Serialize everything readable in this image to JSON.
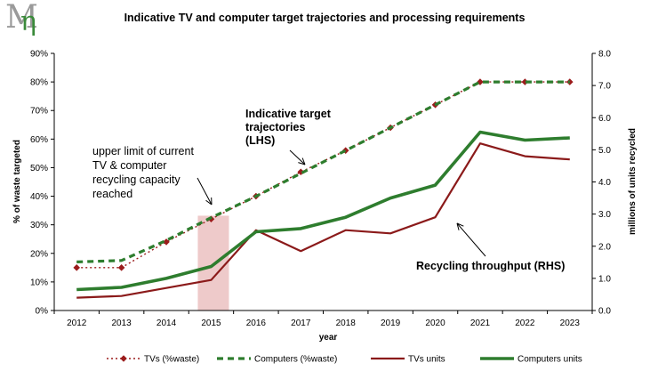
{
  "logo": {
    "name": "Mη",
    "glyph_m": "M",
    "glyph_eta": "η",
    "colors": [
      "#9a9a9a",
      "#3a8a3a"
    ]
  },
  "chart_data": {
    "type": "line",
    "title": "Indicative TV and computer target trajectories and processing requirements",
    "xlabel": "year",
    "ylabel": "% of waste targeted",
    "y2label": "millions of units recycled",
    "categories": [
      "2012",
      "2013",
      "2014",
      "2015",
      "2016",
      "2017",
      "2018",
      "2019",
      "2020",
      "2021",
      "2022",
      "2023"
    ],
    "ylim": [
      0,
      90
    ],
    "y_ticks": [
      "0%",
      "10%",
      "20%",
      "30%",
      "40%",
      "50%",
      "60%",
      "70%",
      "80%",
      "90%"
    ],
    "y2lim": [
      0,
      8
    ],
    "y2_ticks": [
      "0.0",
      "1.0",
      "2.0",
      "3.0",
      "4.0",
      "5.0",
      "6.0",
      "7.0",
      "8.0"
    ],
    "grid": false,
    "legend_position": "bottom",
    "series": [
      {
        "name": "TVs (%waste)",
        "axis": "left",
        "style": "dotted-markers",
        "color": "#9b1c1c",
        "values": [
          15,
          15,
          24,
          32,
          40,
          48.5,
          56,
          64,
          72,
          80,
          80,
          80
        ]
      },
      {
        "name": "Computers (%waste)",
        "axis": "left",
        "style": "dashed",
        "color": "#2e7d2e",
        "values": [
          17,
          17.5,
          24.5,
          32.5,
          40,
          48,
          56,
          64,
          72,
          80,
          80,
          80
        ]
      },
      {
        "name": "TVs units",
        "axis": "right",
        "style": "solid",
        "color": "#8b1a1a",
        "values": [
          0.4,
          0.45,
          0.7,
          0.95,
          2.5,
          1.85,
          2.5,
          2.4,
          2.9,
          5.2,
          4.8,
          4.7
        ]
      },
      {
        "name": "Computers units",
        "axis": "right",
        "style": "solid-thick",
        "color": "#2e7d2e",
        "values": [
          0.65,
          0.72,
          1.0,
          1.37,
          2.45,
          2.55,
          2.9,
          3.5,
          3.9,
          5.55,
          5.3,
          5.37
        ]
      }
    ],
    "highlight": {
      "category": "2015",
      "color": "#eecaca"
    },
    "annotations": [
      {
        "id": "capacity",
        "text": "upper limit of current TV & computer recycling capacity reached",
        "lines": [
          "upper limit of current",
          "TV & computer",
          "recycling capacity",
          "reached"
        ]
      },
      {
        "id": "trajectories",
        "text": "Indicative target trajectories (LHS)",
        "lines": [
          "Indicative target",
          "trajectories",
          "(LHS)"
        ]
      },
      {
        "id": "throughput",
        "text": "Recycling throughput (RHS)",
        "lines": [
          "Recycling throughput (RHS)"
        ]
      }
    ]
  }
}
